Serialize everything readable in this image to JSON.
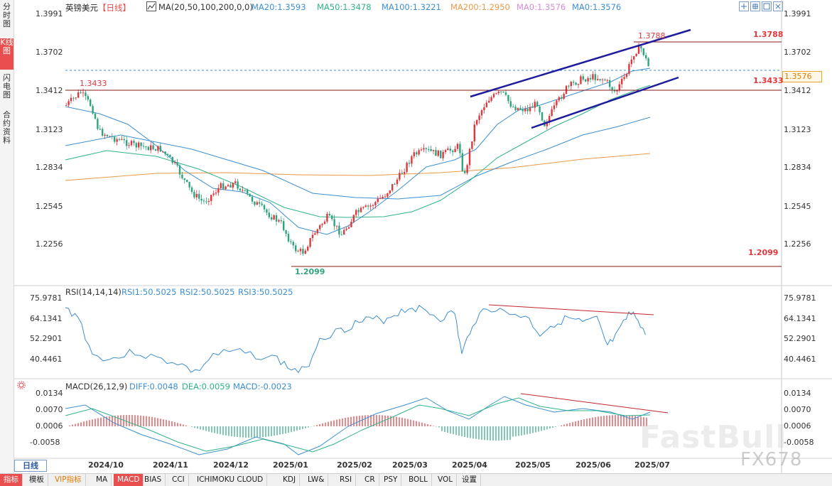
{
  "left_tabs": [
    "分时图",
    "K线图",
    "闪电图",
    "合约资料"
  ],
  "left_tab_active": 1,
  "header": {
    "title": "英镑美元",
    "period": "【日线】",
    "ma_label": "MA(20,50,100,200,0,0)",
    "ma_values": [
      {
        "text": "MA20:1.3593",
        "color": "#3d8fd1"
      },
      {
        "text": "MA50:1.3478",
        "color": "#2fb38a"
      },
      {
        "text": "MA100:1.3221",
        "color": "#3d8fd1"
      },
      {
        "text": "MA200:1.2950",
        "color": "#e89a4a"
      },
      {
        "text": "MA0:1.3576",
        "color": "#d78bd6"
      },
      {
        "text": "MA0:1.3576",
        "color": "#3d8fd1"
      }
    ]
  },
  "price_axis": [
    "1.3991",
    "1.3702",
    "1.3412",
    "1.3123",
    "1.2834",
    "1.2545",
    "1.2256"
  ],
  "current_price": "1.3576",
  "annotations": {
    "high_left": "1.3433",
    "high_top": "1.3788",
    "high_right": "1.3788",
    "mid_right": "1.3433",
    "low_right": "1.2099",
    "low_left": "1.2099"
  },
  "rsi": {
    "label": "RSI(14,14,14)",
    "values": [
      "RSI1:50.5025",
      "RSI2:50.5025",
      "RSI3:50.5025"
    ],
    "axis": [
      "75.9781",
      "64.1341",
      "52.2901",
      "40.4461"
    ]
  },
  "macd": {
    "label": "MACD(26,12,9)",
    "diff": "DIFF:0.0048",
    "dea": "DEA:0.0059",
    "macd": "MACD:-0.0023",
    "axis": [
      "0.0134",
      "0.0070",
      "0.0006",
      "-0.0058"
    ]
  },
  "x_axis": [
    "日线",
    "2024/10",
    "2024/11",
    "2024/12",
    "2025/01",
    "2025/02",
    "2025/03",
    "2025/04",
    "2025/05",
    "2025/06",
    "2025/07"
  ],
  "watermark": "FX678",
  "watermark2": "FastBull",
  "bottom_tabs": [
    "指标",
    "模板",
    "VIP指标",
    "MA",
    "MACD",
    "BIAS",
    "CCI",
    "ICHIMOKU CLOUD",
    "KDJ",
    "LW&",
    "RSI",
    "CR",
    "PSY",
    "BOLL",
    "VOL",
    "设置"
  ],
  "bottom_tab_active": 4,
  "colors": {
    "up": "#e0373d",
    "down": "#2ea37f",
    "trend": "#1c1c9c",
    "hline": "#8b1a1a",
    "accent": "#e94f4f"
  },
  "toolbar_icons": [
    "zoom-in-icon",
    "zoom-out-icon",
    "maximize-icon",
    "close-icon"
  ]
}
